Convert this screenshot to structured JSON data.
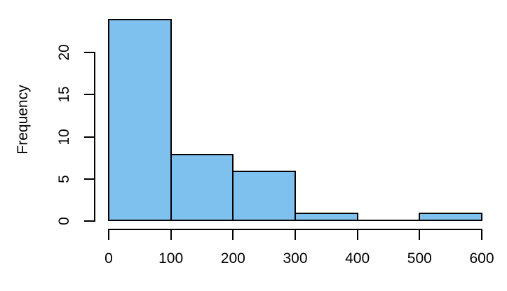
{
  "chart_data": {
    "type": "bar",
    "subtype": "histogram",
    "title": "",
    "xlabel": "",
    "ylabel": "Frequency",
    "bin_edges": [
      0,
      100,
      200,
      300,
      400,
      500,
      600
    ],
    "counts": [
      24,
      8,
      6,
      1,
      0,
      1
    ],
    "xticks": [
      0,
      100,
      200,
      300,
      400,
      500,
      600
    ],
    "yticks": [
      0,
      5,
      10,
      15,
      20
    ],
    "xlim": [
      0,
      600
    ],
    "ylim": [
      0,
      24
    ],
    "grid": "off",
    "legend": "none",
    "bar_fill": "#7EC0EE",
    "bar_stroke": "#000000",
    "axis_color": "#000000",
    "text_color": "#000000"
  }
}
